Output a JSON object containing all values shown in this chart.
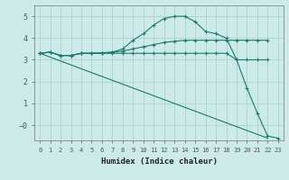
{
  "background_color": "#cceae7",
  "grid_color": "#aed4d0",
  "line_color": "#1a7a6e",
  "xlabel": "Humidex (Indice chaleur)",
  "xlim": [
    -0.5,
    23.5
  ],
  "ylim": [
    -0.7,
    5.5
  ],
  "xticks": [
    0,
    1,
    2,
    3,
    4,
    5,
    6,
    7,
    8,
    9,
    10,
    11,
    12,
    13,
    14,
    15,
    16,
    17,
    18,
    19,
    20,
    21,
    22,
    23
  ],
  "yticks": [
    0,
    1,
    2,
    3,
    4,
    5
  ],
  "ytick_labels": [
    "−0",
    "1",
    "2",
    "3",
    "4",
    "5"
  ],
  "series": [
    {
      "x": [
        0,
        1,
        2,
        3,
        4,
        5,
        6,
        7,
        8,
        9,
        10,
        11,
        12,
        13,
        14,
        15,
        16,
        17,
        18,
        19,
        20,
        21,
        22
      ],
      "y": [
        3.3,
        3.35,
        3.2,
        3.2,
        3.3,
        3.3,
        3.3,
        3.3,
        3.3,
        3.3,
        3.3,
        3.3,
        3.3,
        3.3,
        3.3,
        3.3,
        3.3,
        3.3,
        3.3,
        3.0,
        3.0,
        3.0,
        3.0
      ],
      "style": "-",
      "marker": "+"
    },
    {
      "x": [
        0,
        1,
        2,
        3,
        4,
        5,
        6,
        7,
        8,
        9,
        10,
        11,
        12,
        13,
        14,
        15,
        16,
        17,
        18,
        19,
        20,
        21,
        22
      ],
      "y": [
        3.3,
        3.35,
        3.2,
        3.2,
        3.3,
        3.3,
        3.32,
        3.35,
        3.4,
        3.5,
        3.6,
        3.7,
        3.8,
        3.85,
        3.9,
        3.9,
        3.9,
        3.9,
        3.9,
        3.9,
        3.9,
        3.9,
        3.9
      ],
      "style": "-",
      "marker": "+"
    },
    {
      "x": [
        0,
        1,
        2,
        3,
        4,
        5,
        6,
        7,
        8,
        9,
        10,
        11,
        12,
        13,
        14,
        15,
        16,
        17,
        18,
        19,
        20,
        21,
        22,
        23
      ],
      "y": [
        3.3,
        3.35,
        3.2,
        3.2,
        3.3,
        3.3,
        3.32,
        3.35,
        3.5,
        3.9,
        4.2,
        4.6,
        4.9,
        5.0,
        5.0,
        4.75,
        4.3,
        4.2,
        4.0,
        3.0,
        1.7,
        0.55,
        -0.5,
        -0.6
      ],
      "style": "-",
      "marker": "+"
    },
    {
      "x": [
        0,
        22
      ],
      "y": [
        3.3,
        -0.6
      ],
      "style": "-",
      "marker": null
    }
  ]
}
